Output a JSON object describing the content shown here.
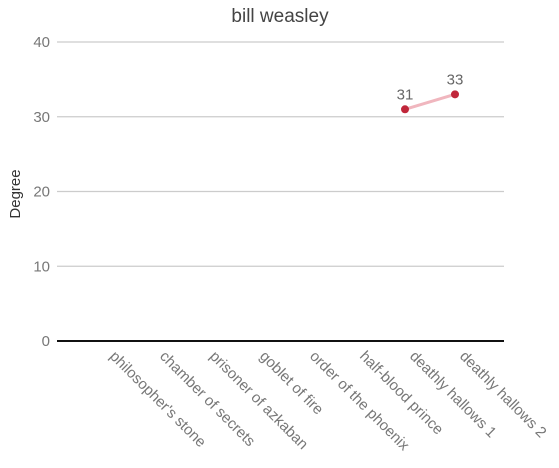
{
  "chart_data": {
    "type": "line",
    "title": "bill weasley",
    "xlabel": "",
    "ylabel": "Degree",
    "ylim": [
      0,
      40
    ],
    "yticks": [
      0,
      10,
      20,
      30,
      40
    ],
    "grid": true,
    "categories": [
      "philosopher's stone",
      "chamber of secrets",
      "prisoner of azkaban",
      "goblet of fire",
      "order of the phoenix",
      "half-blood prince",
      "deathly hallows 1",
      "deathly hallows 2"
    ],
    "series": [
      {
        "values": [
          null,
          null,
          null,
          null,
          null,
          null,
          31,
          33
        ],
        "point_color": "#c0263a",
        "line_color": "#f0b6be"
      }
    ]
  }
}
